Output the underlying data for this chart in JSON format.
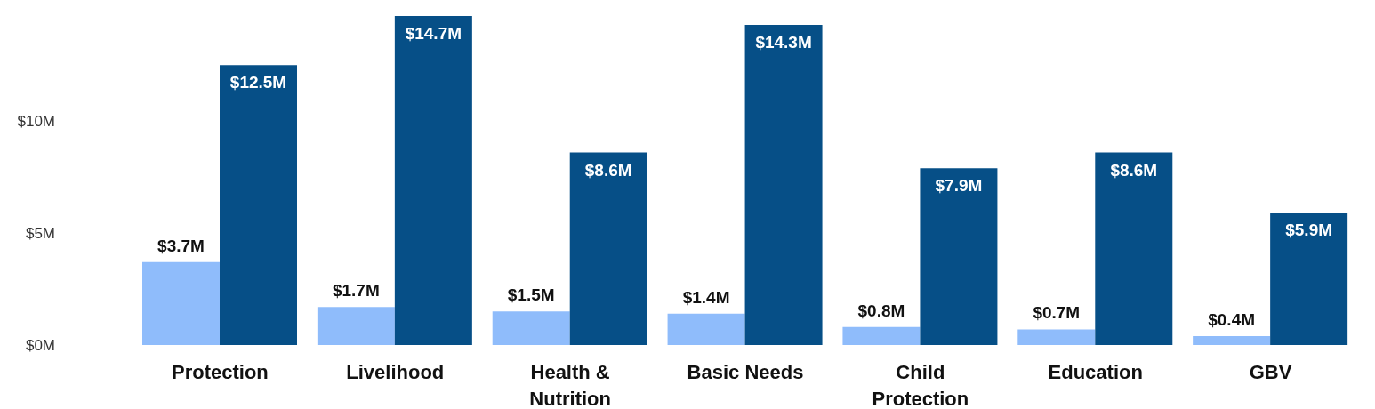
{
  "chart_data": {
    "type": "bar",
    "categories": [
      "Protection",
      "Livelihood",
      "Health & Nutrition",
      "Basic Needs",
      "Child Protection",
      "Education",
      "GBV"
    ],
    "series": [
      {
        "color": "#8fbcfb",
        "values": [
          3.7,
          1.7,
          1.5,
          1.4,
          0.8,
          0.7,
          0.4
        ],
        "value_labels": [
          "$3.7M",
          "$1.7M",
          "$1.5M",
          "$1.4M",
          "$0.8M",
          "$0.7M",
          "$0.4M"
        ]
      },
      {
        "color": "#064f87",
        "values": [
          12.5,
          14.7,
          8.6,
          14.3,
          7.9,
          8.6,
          5.9
        ],
        "value_labels": [
          "$12.5M",
          "$14.7M",
          "$8.6M",
          "$14.3M",
          "$7.9M",
          "$8.6M",
          "$5.9M"
        ]
      }
    ],
    "ylim": [
      0,
      14.7
    ],
    "yticks": [
      {
        "value": 0,
        "label": "$0M"
      },
      {
        "value": 5,
        "label": "$5M"
      },
      {
        "value": 10,
        "label": "$10M"
      }
    ],
    "grid": false,
    "legend": false
  }
}
